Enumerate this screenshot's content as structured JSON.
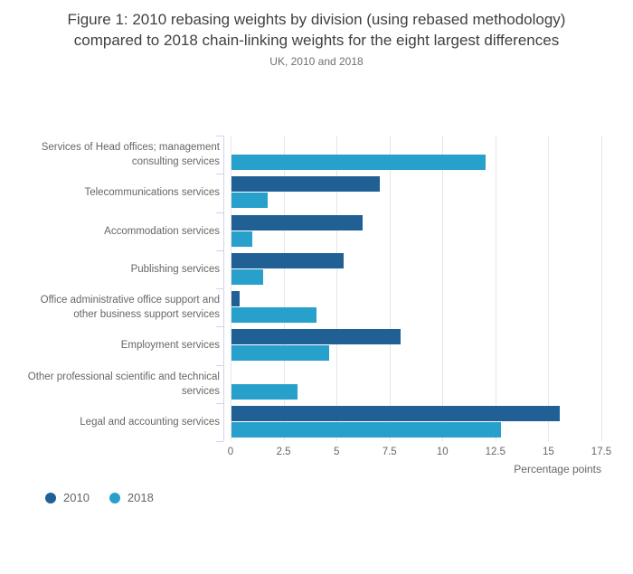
{
  "chart_data": {
    "type": "bar",
    "orientation": "horizontal",
    "title": "Figure 1: 2010 rebasing weights by division (using rebased methodology) compared to 2018 chain-linking weights for the eight largest differences",
    "title_lines": [
      "Figure 1: 2010 rebasing weights by division (using rebased methodology)",
      "compared to 2018 chain-linking weights for the eight largest differences"
    ],
    "subtitle": "UK, 2010 and 2018",
    "xlabel": "Percentage points",
    "xlim": [
      0,
      17.5
    ],
    "xticks": [
      "0",
      "2.5",
      "5",
      "7.5",
      "10",
      "12.5",
      "15",
      "17.5"
    ],
    "grid": true,
    "legend_position": "bottom-left",
    "categories": [
      "Services of Head offices; management consulting services",
      "Telecommunications services",
      "Accommodation services",
      "Publishing services",
      "Office administrative office support and other business support services",
      "Employment services",
      "Other professional scientific and technical services",
      "Legal and accounting services"
    ],
    "category_label_lines": [
      [
        "Services of Head offices; management",
        "consulting services"
      ],
      [
        "Telecommunications services"
      ],
      [
        "Accommodation services"
      ],
      [
        "Publishing services"
      ],
      [
        "Office administrative office support and",
        "other business support services"
      ],
      [
        "Employment services"
      ],
      [
        "Other professional scientific and technical",
        "services"
      ],
      [
        "Legal and accounting services"
      ]
    ],
    "series": [
      {
        "name": "2010",
        "color": "#206095",
        "values": [
          0,
          7.0,
          6.2,
          5.3,
          0.4,
          8.0,
          0,
          15.5
        ]
      },
      {
        "name": "2018",
        "color": "#27a0cc",
        "values": [
          12.0,
          1.7,
          1.0,
          1.5,
          4.0,
          4.6,
          3.1,
          12.7
        ]
      }
    ]
  },
  "colors": {
    "gridline": "#e6e6e6",
    "axis_line": "#ccd6eb",
    "title_text": "#414042",
    "subtitle_text": "#707071",
    "axis_text": "#666666"
  }
}
